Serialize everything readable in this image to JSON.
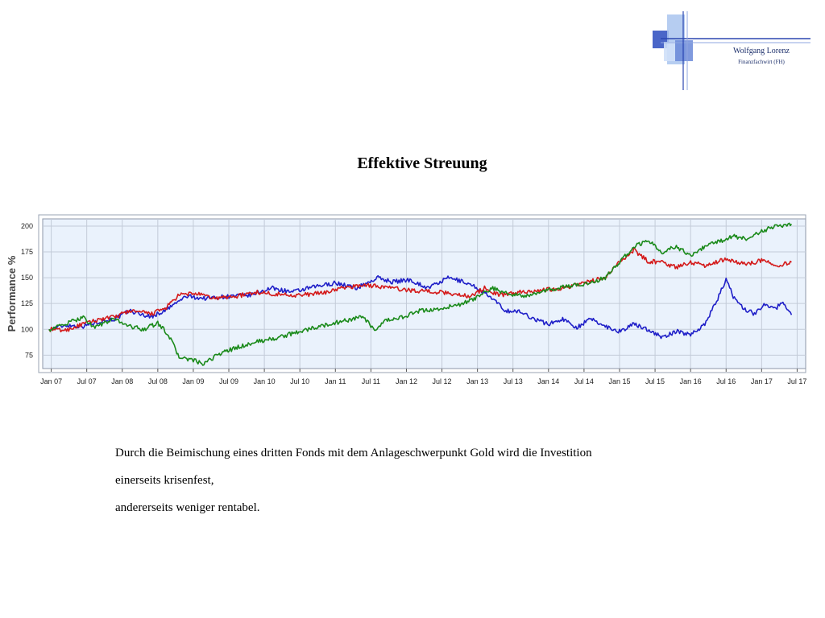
{
  "header": {
    "logo_name": "Wolfgang Lorenz",
    "logo_subtitle": "Finanzfachwirt (FH)"
  },
  "title": "Effektive Streuung",
  "chart_data": {
    "type": "line",
    "title": "",
    "xlabel": "",
    "ylabel": "Performance %",
    "ylim": [
      62,
      207
    ],
    "yticks": [
      75,
      100,
      125,
      150,
      175,
      200
    ],
    "xlim": [
      2006.88,
      2017.62
    ],
    "xticks": [
      {
        "label": "Jan 07",
        "value": 2007.0
      },
      {
        "label": "Jul 07",
        "value": 2007.5
      },
      {
        "label": "Jan 08",
        "value": 2008.0
      },
      {
        "label": "Jul 08",
        "value": 2008.5
      },
      {
        "label": "Jan 09",
        "value": 2009.0
      },
      {
        "label": "Jul 09",
        "value": 2009.5
      },
      {
        "label": "Jan 10",
        "value": 2010.0
      },
      {
        "label": "Jul 10",
        "value": 2010.5
      },
      {
        "label": "Jan 11",
        "value": 2011.0
      },
      {
        "label": "Jul 11",
        "value": 2011.5
      },
      {
        "label": "Jan 12",
        "value": 2012.0
      },
      {
        "label": "Jul 12",
        "value": 2012.5
      },
      {
        "label": "Jan 13",
        "value": 2013.0
      },
      {
        "label": "Jul 13",
        "value": 2013.5
      },
      {
        "label": "Jan 14",
        "value": 2014.0
      },
      {
        "label": "Jul 14",
        "value": 2014.5
      },
      {
        "label": "Jan 15",
        "value": 2015.0
      },
      {
        "label": "Jul 15",
        "value": 2015.5
      },
      {
        "label": "Jan 16",
        "value": 2016.0
      },
      {
        "label": "Jul 16",
        "value": 2016.5
      },
      {
        "label": "Jan 17",
        "value": 2017.0
      },
      {
        "label": "Jul 17",
        "value": 2017.5
      }
    ],
    "grid": true,
    "background": "#eaf2fc",
    "series": [
      {
        "color": "#1f1fc8",
        "x": [
          2006.97,
          2007.2,
          2007.45,
          2007.7,
          2007.9,
          2008.1,
          2008.4,
          2008.6,
          2008.9,
          2009.15,
          2009.5,
          2009.8,
          2010.1,
          2010.4,
          2010.7,
          2011.0,
          2011.3,
          2011.6,
          2011.8,
          2012.05,
          2012.3,
          2012.6,
          2012.85,
          2013.0,
          2013.2,
          2013.4,
          2013.6,
          2013.8,
          2014.0,
          2014.2,
          2014.4,
          2014.6,
          2014.8,
          2015.0,
          2015.2,
          2015.4,
          2015.6,
          2015.8,
          2016.0,
          2016.2,
          2016.35,
          2016.5,
          2016.6,
          2016.75,
          2016.9,
          2017.05,
          2017.2,
          2017.3,
          2017.42
        ],
        "y": [
          100,
          104,
          103,
          108,
          110,
          118,
          112,
          118,
          132,
          130,
          132,
          133,
          140,
          136,
          141,
          145,
          140,
          150,
          146,
          148,
          140,
          150,
          145,
          140,
          130,
          118,
          117,
          110,
          105,
          110,
          102,
          110,
          103,
          98,
          105,
          100,
          92,
          98,
          95,
          105,
          125,
          148,
          132,
          120,
          115,
          125,
          120,
          127,
          114
        ]
      },
      {
        "color": "#d41a1a",
        "x": [
          2006.97,
          2007.2,
          2007.45,
          2007.7,
          2007.9,
          2008.1,
          2008.4,
          2008.6,
          2008.8,
          2009.0,
          2009.3,
          2009.6,
          2009.9,
          2010.2,
          2010.5,
          2010.8,
          2011.1,
          2011.4,
          2011.7,
          2012.0,
          2012.3,
          2012.6,
          2012.9,
          2013.1,
          2013.3,
          2013.6,
          2013.9,
          2014.2,
          2014.5,
          2014.8,
          2015.0,
          2015.2,
          2015.4,
          2015.6,
          2015.8,
          2016.0,
          2016.2,
          2016.5,
          2016.8,
          2017.0,
          2017.2,
          2017.42
        ],
        "y": [
          100,
          99,
          105,
          110,
          112,
          118,
          115,
          120,
          133,
          135,
          130,
          132,
          136,
          134,
          133,
          135,
          140,
          143,
          141,
          138,
          137,
          135,
          132,
          140,
          133,
          136,
          138,
          140,
          145,
          150,
          165,
          177,
          166,
          165,
          160,
          165,
          162,
          168,
          163,
          167,
          162,
          165
        ]
      },
      {
        "color": "#1a8a1a",
        "x": [
          2006.97,
          2007.2,
          2007.45,
          2007.6,
          2007.9,
          2008.1,
          2008.3,
          2008.5,
          2008.65,
          2008.8,
          2009.0,
          2009.15,
          2009.35,
          2009.6,
          2009.9,
          2010.2,
          2010.5,
          2010.8,
          2011.1,
          2011.4,
          2011.55,
          2011.7,
          2011.95,
          2012.2,
          2012.5,
          2012.8,
          2013.0,
          2013.2,
          2013.4,
          2013.7,
          2014.0,
          2014.3,
          2014.6,
          2014.8,
          2015.0,
          2015.2,
          2015.4,
          2015.6,
          2015.8,
          2016.0,
          2016.2,
          2016.4,
          2016.6,
          2016.8,
          2017.0,
          2017.2,
          2017.42
        ],
        "y": [
          100,
          105,
          112,
          102,
          110,
          103,
          100,
          106,
          95,
          73,
          70,
          66,
          76,
          82,
          88,
          92,
          98,
          103,
          108,
          112,
          98,
          108,
          112,
          118,
          120,
          125,
          131,
          140,
          135,
          132,
          138,
          142,
          145,
          150,
          165,
          180,
          186,
          175,
          180,
          172,
          180,
          185,
          190,
          188,
          195,
          200,
          202
        ]
      }
    ]
  },
  "body": {
    "line1": "Durch die Beimischung eines dritten Fonds mit dem Anlageschwerpunkt Gold wird die Investition",
    "line2": "einerseits krisenfest,",
    "line3": "andererseits weniger rentabel."
  }
}
